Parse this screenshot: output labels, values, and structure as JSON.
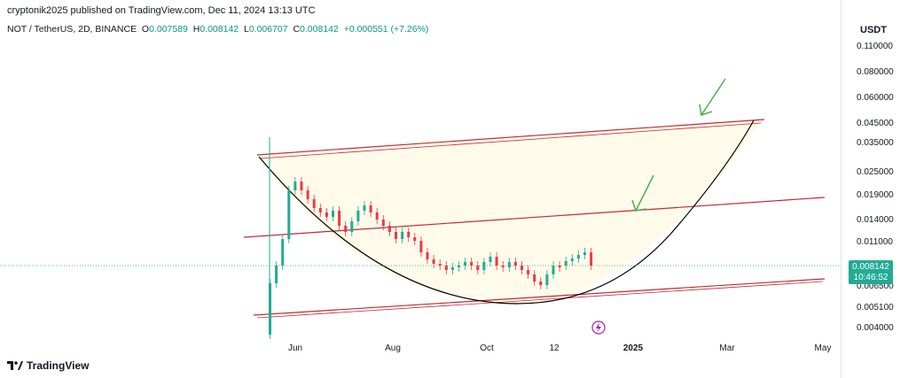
{
  "header": {
    "text": "cryptonik2025 published on TradingView.com, Dec 11, 2024 13:13 UTC"
  },
  "symbol": {
    "name": "NOT / TetherUS, 2D, BINANCE",
    "open_label": "O",
    "open": "0.007589",
    "high_label": "H",
    "high": "0.008142",
    "low_label": "L",
    "low": "0.006707",
    "close_label": "C",
    "close": "0.008142",
    "change": "+0.000551 (+7.26%)"
  },
  "axis": {
    "currency": "USDT"
  },
  "price_tag": {
    "price": "0.008142",
    "countdown": "10:46:52"
  },
  "footer": {
    "brand": "TradingView"
  },
  "colors": {
    "up": "#22ab94",
    "down": "#f23645",
    "channel": "#c22b34",
    "cup": "#000000",
    "arrow": "#4caf50",
    "fill": "#fffbea"
  },
  "chart_data": {
    "type": "candlestick",
    "y_ticks": [
      "0.110000",
      "0.080000",
      "0.060000",
      "0.045000",
      "0.035000",
      "0.025000",
      "0.019000",
      "0.014000",
      "0.011000",
      "0.006500",
      "0.005100",
      "0.004000"
    ],
    "x_ticks": [
      "Jun",
      "Aug",
      "Oct",
      "12",
      "2025",
      "Mar",
      "May"
    ]
  }
}
